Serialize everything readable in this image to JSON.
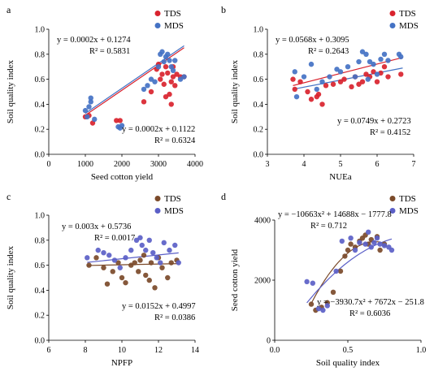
{
  "chart_data": [
    {
      "panel_label": "a",
      "type": "scatter",
      "xlabel": "Seed cotton yield",
      "ylabel": "Soil quality index",
      "xlim": [
        0,
        4000
      ],
      "ylim": [
        0,
        1.0
      ],
      "x_ticks": [
        "0",
        "1000",
        "2000",
        "3000",
        "4000"
      ],
      "y_ticks": [
        "0.0",
        "0.2",
        "0.4",
        "0.6",
        "0.8",
        "1.0"
      ],
      "legend": [
        "TDS",
        "MDS"
      ],
      "legend_position": "top-right",
      "series": [
        {
          "name": "TDS",
          "color": "#d9232e",
          "points": [
            [
              1000,
              0.3
            ],
            [
              1100,
              0.31
            ],
            [
              1200,
              0.25
            ],
            [
              1850,
              0.27
            ],
            [
              1950,
              0.27
            ],
            [
              2600,
              0.42
            ],
            [
              2800,
              0.5
            ],
            [
              2950,
              0.68
            ],
            [
              3050,
              0.6
            ],
            [
              3100,
              0.64
            ],
            [
              3150,
              0.56
            ],
            [
              3200,
              0.46
            ],
            [
              3250,
              0.65
            ],
            [
              3300,
              0.48
            ],
            [
              3350,
              0.58
            ],
            [
              3350,
              0.4
            ],
            [
              3400,
              0.7
            ],
            [
              3450,
              0.55
            ],
            [
              3500,
              0.64
            ],
            [
              3600,
              0.62
            ],
            [
              3700,
              0.62
            ],
            [
              3000,
              0.72
            ],
            [
              3200,
              0.7
            ],
            [
              3400,
              0.62
            ]
          ],
          "fit": {
            "slope": 0.0002,
            "intercept": 0.1122,
            "x_range": [
              1000,
              3700
            ]
          }
        },
        {
          "name": "MDS",
          "color": "#4472c4",
          "points": [
            [
              1000,
              0.35
            ],
            [
              1050,
              0.3
            ],
            [
              1100,
              0.38
            ],
            [
              1150,
              0.42
            ],
            [
              1150,
              0.45
            ],
            [
              1250,
              0.28
            ],
            [
              1900,
              0.22
            ],
            [
              1950,
              0.21
            ],
            [
              2000,
              0.23
            ],
            [
              2600,
              0.52
            ],
            [
              2700,
              0.55
            ],
            [
              2800,
              0.6
            ],
            [
              2900,
              0.58
            ],
            [
              3000,
              0.7
            ],
            [
              3050,
              0.8
            ],
            [
              3100,
              0.82
            ],
            [
              3150,
              0.74
            ],
            [
              3200,
              0.78
            ],
            [
              3250,
              0.8
            ],
            [
              3300,
              0.75
            ],
            [
              3350,
              0.7
            ],
            [
              3400,
              0.67
            ],
            [
              3450,
              0.75
            ],
            [
              3600,
              0.6
            ],
            [
              3700,
              0.62
            ]
          ],
          "fit": {
            "slope": 0.0002,
            "intercept": 0.1274,
            "x_range": [
              1000,
              3700
            ]
          }
        }
      ],
      "annotations": [
        {
          "lines": [
            "y = 0.0002x + 0.1274",
            "R² = 0.5831"
          ]
        },
        {
          "lines": [
            "y = 0.0002x + 0.1122",
            "R² = 0.6324"
          ]
        }
      ]
    },
    {
      "panel_label": "b",
      "type": "scatter",
      "xlabel": "NUEa",
      "ylabel": "Soil quality index",
      "xlim": [
        3,
        7
      ],
      "ylim": [
        0,
        1.0
      ],
      "x_ticks": [
        "3",
        "4",
        "5",
        "6",
        "7"
      ],
      "y_ticks": [
        "0.0",
        "0.2",
        "0.4",
        "0.6",
        "0.8",
        "1.0"
      ],
      "legend": [
        "TDS",
        "MDS"
      ],
      "legend_position": "top-right",
      "series": [
        {
          "name": "TDS",
          "color": "#d9232e",
          "points": [
            [
              3.7,
              0.6
            ],
            [
              3.75,
              0.52
            ],
            [
              3.9,
              0.58
            ],
            [
              4.1,
              0.5
            ],
            [
              4.2,
              0.44
            ],
            [
              4.35,
              0.46
            ],
            [
              4.4,
              0.48
            ],
            [
              4.5,
              0.4
            ],
            [
              4.6,
              0.55
            ],
            [
              4.8,
              0.56
            ],
            [
              5.0,
              0.58
            ],
            [
              5.1,
              0.6
            ],
            [
              5.3,
              0.54
            ],
            [
              5.4,
              0.62
            ],
            [
              5.5,
              0.56
            ],
            [
              5.6,
              0.58
            ],
            [
              5.7,
              0.64
            ],
            [
              5.8,
              0.62
            ],
            [
              5.9,
              0.66
            ],
            [
              6.0,
              0.58
            ],
            [
              6.1,
              0.65
            ],
            [
              6.2,
              0.7
            ],
            [
              6.3,
              0.62
            ],
            [
              6.65,
              0.64
            ]
          ],
          "fit": {
            "slope": 0.0749,
            "intercept": 0.2723,
            "x_range": [
              3.7,
              6.7
            ]
          }
        },
        {
          "name": "MDS",
          "color": "#4472c4",
          "points": [
            [
              3.75,
              0.66
            ],
            [
              3.8,
              0.46
            ],
            [
              4.0,
              0.62
            ],
            [
              4.2,
              0.72
            ],
            [
              4.35,
              0.52
            ],
            [
              4.5,
              0.58
            ],
            [
              4.7,
              0.62
            ],
            [
              4.9,
              0.68
            ],
            [
              5.0,
              0.66
            ],
            [
              5.2,
              0.7
            ],
            [
              5.4,
              0.62
            ],
            [
              5.5,
              0.74
            ],
            [
              5.6,
              0.82
            ],
            [
              5.7,
              0.8
            ],
            [
              5.75,
              0.6
            ],
            [
              5.8,
              0.74
            ],
            [
              5.9,
              0.72
            ],
            [
              6.0,
              0.64
            ],
            [
              6.1,
              0.76
            ],
            [
              6.2,
              0.8
            ],
            [
              6.3,
              0.75
            ],
            [
              6.6,
              0.8
            ],
            [
              6.65,
              0.78
            ]
          ],
          "fit": {
            "slope": 0.0568,
            "intercept": 0.3095,
            "x_range": [
              3.7,
              6.7
            ]
          }
        }
      ],
      "annotations": [
        {
          "lines": [
            "y = 0.0568x + 0.3095",
            "R² = 0.2643"
          ]
        },
        {
          "lines": [
            "y = 0.0749x + 0.2723",
            "R² = 0.4152"
          ]
        }
      ]
    },
    {
      "panel_label": "c",
      "type": "scatter",
      "xlabel": "NPFP",
      "ylabel": "Soil quality index",
      "xlim": [
        6,
        14
      ],
      "ylim": [
        0,
        1.0
      ],
      "x_ticks": [
        "6",
        "8",
        "10",
        "12",
        "14"
      ],
      "y_ticks": [
        "0.0",
        "0.2",
        "0.4",
        "0.6",
        "0.8",
        "1.0"
      ],
      "legend": [
        "TDS",
        "MDS"
      ],
      "legend_position": "top-right",
      "series": [
        {
          "name": "TDS",
          "color": "#7b4a2a",
          "points": [
            [
              8.2,
              0.6
            ],
            [
              8.6,
              0.66
            ],
            [
              9.0,
              0.58
            ],
            [
              9.2,
              0.45
            ],
            [
              9.5,
              0.55
            ],
            [
              9.8,
              0.62
            ],
            [
              10.0,
              0.5
            ],
            [
              10.2,
              0.46
            ],
            [
              10.5,
              0.6
            ],
            [
              10.7,
              0.62
            ],
            [
              10.9,
              0.55
            ],
            [
              11.0,
              0.64
            ],
            [
              11.2,
              0.68
            ],
            [
              11.3,
              0.52
            ],
            [
              11.5,
              0.48
            ],
            [
              11.6,
              0.62
            ],
            [
              11.8,
              0.42
            ],
            [
              12.0,
              0.66
            ],
            [
              12.2,
              0.58
            ],
            [
              12.5,
              0.5
            ],
            [
              12.7,
              0.62
            ],
            [
              13.0,
              0.64
            ]
          ],
          "fit": {
            "slope": 0.003,
            "intercept": 0.5736,
            "x_range": [
              8.1,
              13.1
            ]
          }
        },
        {
          "name": "MDS",
          "color": "#5b5fc7",
          "points": [
            [
              8.1,
              0.66
            ],
            [
              8.7,
              0.72
            ],
            [
              9.0,
              0.7
            ],
            [
              9.3,
              0.68
            ],
            [
              9.6,
              0.64
            ],
            [
              9.9,
              0.58
            ],
            [
              10.2,
              0.66
            ],
            [
              10.5,
              0.72
            ],
            [
              10.8,
              0.8
            ],
            [
              11.0,
              0.82
            ],
            [
              11.1,
              0.76
            ],
            [
              11.3,
              0.72
            ],
            [
              11.5,
              0.8
            ],
            [
              11.7,
              0.7
            ],
            [
              11.9,
              0.66
            ],
            [
              12.1,
              0.62
            ],
            [
              12.3,
              0.78
            ],
            [
              12.6,
              0.72
            ],
            [
              12.9,
              0.76
            ],
            [
              13.1,
              0.62
            ]
          ],
          "fit": {
            "slope": 0.0152,
            "intercept": 0.4997,
            "x_range": [
              8.1,
              13.1
            ]
          }
        }
      ],
      "annotations": [
        {
          "lines": [
            "y = 0.003x + 0.5736",
            "R² = 0.0017"
          ]
        },
        {
          "lines": [
            "y = 0.0152x + 0.4997",
            "R² = 0.0386"
          ]
        }
      ]
    },
    {
      "panel_label": "d",
      "type": "scatter",
      "xlabel": "Soil quality index",
      "ylabel": "Seed cotton yield",
      "xlim": [
        0,
        1.0
      ],
      "ylim": [
        0,
        4000
      ],
      "x_ticks": [
        "0.0",
        "0.5",
        "1.0"
      ],
      "y_ticks": [
        "0",
        "2000",
        "4000"
      ],
      "legend": [
        "TDS",
        "MDS"
      ],
      "legend_position": "top-right",
      "series": [
        {
          "name": "TDS",
          "color": "#7b4a2a",
          "points": [
            [
              0.25,
              1200
            ],
            [
              0.28,
              1000
            ],
            [
              0.32,
              1100
            ],
            [
              0.36,
              1250
            ],
            [
              0.4,
              1600
            ],
            [
              0.45,
              2300
            ],
            [
              0.48,
              2800
            ],
            [
              0.5,
              3000
            ],
            [
              0.52,
              3200
            ],
            [
              0.55,
              3100
            ],
            [
              0.58,
              3300
            ],
            [
              0.6,
              3400
            ],
            [
              0.62,
              3500
            ],
            [
              0.64,
              3200
            ],
            [
              0.66,
              3350
            ],
            [
              0.7,
              3450
            ],
            [
              0.72,
              3000
            ],
            [
              0.75,
              3200
            ]
          ],
          "fit": {
            "a": -10663,
            "b": 14688,
            "c": -1777.8,
            "x_range": [
              0.25,
              0.72
            ]
          }
        },
        {
          "name": "MDS",
          "color": "#5b5fc7",
          "points": [
            [
              0.22,
              1950
            ],
            [
              0.26,
              1900
            ],
            [
              0.3,
              1050
            ],
            [
              0.33,
              1000
            ],
            [
              0.36,
              1150
            ],
            [
              0.42,
              2300
            ],
            [
              0.46,
              3300
            ],
            [
              0.52,
              3400
            ],
            [
              0.55,
              3000
            ],
            [
              0.58,
              3250
            ],
            [
              0.62,
              3200
            ],
            [
              0.64,
              3600
            ],
            [
              0.66,
              3100
            ],
            [
              0.68,
              3250
            ],
            [
              0.7,
              3400
            ],
            [
              0.72,
              3200
            ],
            [
              0.75,
              3150
            ],
            [
              0.78,
              3100
            ],
            [
              0.8,
              3000
            ]
          ],
          "fit": {
            "a": -3930.7,
            "b": 7672,
            "c": -251.8,
            "x_range": [
              0.22,
              0.8
            ]
          }
        }
      ],
      "annotations": [
        {
          "lines": [
            "y = −10663x² + 14688x − 1777.8",
            "R² = 0.712"
          ]
        },
        {
          "lines": [
            "y = −3930.7x² + 7672x − 251.8",
            "R² = 0.6036"
          ]
        }
      ]
    }
  ]
}
